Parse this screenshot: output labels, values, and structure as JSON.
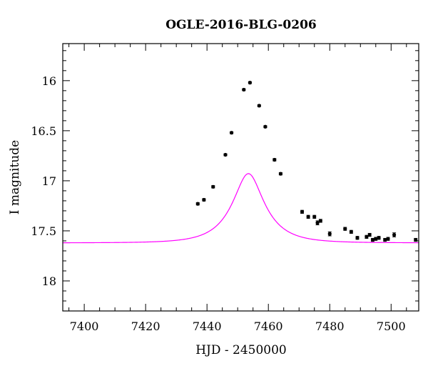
{
  "chart_data": {
    "type": "scatter",
    "title": "OGLE-2016-BLG-0206",
    "xlabel": "HJD - 2450000",
    "ylabel": "I magnitude",
    "xlim": [
      7393,
      7509
    ],
    "ylim": [
      18.3,
      15.63
    ],
    "y_inverted": true,
    "grid": false,
    "x_ticks": [
      7400,
      7420,
      7440,
      7460,
      7480,
      7500
    ],
    "x_tick_labels": [
      "7400",
      "7420",
      "7440",
      "7460",
      "7480",
      "7500"
    ],
    "y_ticks": [
      16,
      16.5,
      17,
      17.5,
      18
    ],
    "y_tick_labels": [
      "16",
      "16.5",
      "17",
      "17.5",
      "18"
    ],
    "colors": {
      "data": "#000000",
      "model": "#ff00ff",
      "axes": "#000000"
    },
    "series": [
      {
        "type": "scatter",
        "x": [
          7437,
          7439,
          7442,
          7446,
          7448,
          7452,
          7454,
          7457,
          7459,
          7462,
          7464,
          7471,
          7473,
          7475,
          7476,
          7477,
          7480,
          7485,
          7487,
          7489,
          7492,
          7493,
          7494,
          7495,
          7496,
          7498,
          7499,
          7501,
          7508
        ],
        "y": [
          17.23,
          17.19,
          17.06,
          16.74,
          16.52,
          16.09,
          16.02,
          16.25,
          16.46,
          16.79,
          16.93,
          17.31,
          17.36,
          17.36,
          17.42,
          17.4,
          17.53,
          17.48,
          17.51,
          17.57,
          17.56,
          17.54,
          17.59,
          17.58,
          17.57,
          17.59,
          17.58,
          17.54,
          17.59
        ],
        "y_err": [
          0.012,
          0.012,
          0.012,
          0.01,
          0.01,
          0.01,
          0.01,
          0.01,
          0.01,
          0.012,
          0.012,
          0.015,
          0.015,
          0.015,
          0.02,
          0.015,
          0.02,
          0.015,
          0.015,
          0.015,
          0.015,
          0.015,
          0.015,
          0.015,
          0.015,
          0.015,
          0.015,
          0.02,
          0.015
        ]
      },
      {
        "type": "line",
        "model": "point-lens",
        "t0": 7453.5,
        "tE": 10.5,
        "u0": 0.42,
        "baseline": 17.62,
        "blend_fraction": 0.58
      }
    ]
  }
}
